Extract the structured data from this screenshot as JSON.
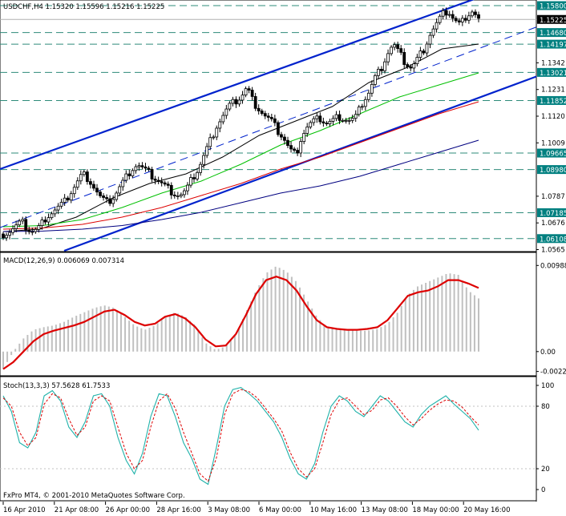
{
  "chart_data": [
    {
      "type": "candlestick",
      "title": "USDCHF,H4  1.15320 1.15596 1.15216 1.15225",
      "symbol": "USDCHF,H4",
      "ohlc_header": {
        "open": "1.15320",
        "high": "1.15596",
        "low": "1.15216",
        "close": "1.15225"
      },
      "ylim": [
        1.056,
        1.16
      ],
      "y_ticks": [
        "1.1342",
        "1.1231",
        "1.1120",
        "1.1009",
        "1.0787",
        "1.0676",
        "1.0565"
      ],
      "x_tick_labels": [
        "16 Apr 2010",
        "21 Apr 08:00",
        "26 Apr 00:00",
        "28 Apr 16:00",
        "3 May 08:00",
        "6 May 00:00",
        "10 May 16:00",
        "13 May 08:00",
        "18 May 00:00",
        "20 May 16:00"
      ],
      "horizontal_levels": [
        "1.15800",
        "1.14680",
        "1.14197",
        "1.13021",
        "1.11852",
        "1.09665",
        "1.08980",
        "1.07185",
        "1.06108"
      ],
      "current_price": "1.15225",
      "close_path": [
        1.063,
        1.064,
        1.066,
        1.068,
        1.065,
        1.064,
        1.066,
        1.07,
        1.072,
        1.074,
        1.076,
        1.08,
        1.084,
        1.088,
        1.086,
        1.082,
        1.078,
        1.076,
        1.078,
        1.082,
        1.086,
        1.09,
        1.092,
        1.09,
        1.088,
        1.086,
        1.084,
        1.082,
        1.08,
        1.079,
        1.081,
        1.086,
        1.09,
        1.096,
        1.102,
        1.108,
        1.112,
        1.116,
        1.118,
        1.12,
        1.124,
        1.118,
        1.115,
        1.112,
        1.11,
        1.106,
        1.103,
        1.098,
        1.096,
        1.104,
        1.108,
        1.11,
        1.111,
        1.109,
        1.11,
        1.112,
        1.111,
        1.11,
        1.112,
        1.118,
        1.122,
        1.128,
        1.132,
        1.138,
        1.142,
        1.138,
        1.134,
        1.132,
        1.136,
        1.14,
        1.146,
        1.15,
        1.154,
        1.156,
        1.152,
        1.15,
        1.154,
        1.156,
        1.1522
      ],
      "moving_averages": [
        {
          "color": "#000000",
          "values": [
            1.064,
            1.065,
            1.07,
            1.078,
            1.084,
            1.088,
            1.095,
            1.104,
            1.11,
            1.116,
            1.126,
            1.132,
            1.14,
            1.142
          ]
        },
        {
          "color": "#00c000",
          "values": [
            1.066,
            1.0665,
            1.069,
            1.074,
            1.08,
            1.085,
            1.092,
            1.1,
            1.106,
            1.113,
            1.12,
            1.125,
            1.13
          ]
        },
        {
          "color": "#dd0000",
          "values": [
            1.065,
            1.0655,
            1.067,
            1.07,
            1.074,
            1.079,
            1.084,
            1.09,
            1.095,
            1.101,
            1.107,
            1.113,
            1.118
          ]
        },
        {
          "color": "#000080",
          "values": [
            1.064,
            1.0642,
            1.065,
            1.0665,
            1.069,
            1.072,
            1.076,
            1.08,
            1.083,
            1.087,
            1.092,
            1.097,
            1.102
          ]
        }
      ]
    },
    {
      "type": "bar",
      "title": "MACD(12,26,9) 0.006069 0.007314",
      "indicator": "MACD(12,26,9)",
      "values_label": "0.006069 0.007314",
      "ylim": [
        -0.0025,
        0.01
      ],
      "y_ticks": [
        "0.00988",
        "0.00",
        "-0.00228"
      ],
      "histogram": [
        -0.002,
        0.0,
        0.0015,
        0.0025,
        0.0028,
        0.003,
        0.0034,
        0.004,
        0.0045,
        0.005,
        0.0053,
        0.005,
        0.004,
        0.003,
        0.0025,
        0.003,
        0.004,
        0.0045,
        0.004,
        0.003,
        0.001,
        0.0002,
        0.0006,
        0.002,
        0.0045,
        0.007,
        0.009,
        0.0098,
        0.0092,
        0.008,
        0.006,
        0.004,
        0.0028,
        0.0025,
        0.0025,
        0.0024,
        0.0024,
        0.0026,
        0.0032,
        0.0045,
        0.0065,
        0.0075,
        0.008,
        0.0085,
        0.009,
        0.0088,
        0.007,
        0.0061
      ],
      "signal": [
        -0.002,
        -0.0012,
        0.0,
        0.0012,
        0.002,
        0.0024,
        0.0027,
        0.003,
        0.0034,
        0.004,
        0.0046,
        0.0048,
        0.0042,
        0.0034,
        0.003,
        0.0032,
        0.004,
        0.0043,
        0.0038,
        0.0028,
        0.0014,
        0.0006,
        0.0007,
        0.002,
        0.0042,
        0.0066,
        0.0082,
        0.0086,
        0.0082,
        0.007,
        0.0052,
        0.0036,
        0.0028,
        0.0026,
        0.0025,
        0.0025,
        0.0026,
        0.0028,
        0.0036,
        0.005,
        0.0064,
        0.0068,
        0.007,
        0.0075,
        0.0082,
        0.0082,
        0.0078,
        0.0073
      ]
    },
    {
      "type": "line",
      "title": "Stoch(13,3,3) 57.5628 61.7533",
      "indicator": "Stoch(13,3,3)",
      "values_label": "57.5628 61.7533",
      "ylim": [
        0,
        100
      ],
      "y_ticks": [
        "100",
        "80",
        "20",
        "0"
      ],
      "main": [
        90,
        75,
        45,
        40,
        55,
        90,
        95,
        85,
        60,
        50,
        65,
        90,
        92,
        80,
        50,
        28,
        15,
        35,
        70,
        92,
        90,
        70,
        45,
        30,
        10,
        5,
        40,
        80,
        96,
        98,
        92,
        85,
        75,
        65,
        50,
        30,
        15,
        10,
        25,
        55,
        80,
        90,
        85,
        75,
        70,
        80,
        90,
        85,
        75,
        65,
        60,
        72,
        80,
        85,
        90,
        82,
        75,
        68,
        57
      ],
      "signal": [
        88,
        80,
        55,
        42,
        50,
        82,
        92,
        88,
        68,
        52,
        60,
        85,
        90,
        85,
        60,
        35,
        20,
        28,
        60,
        85,
        92,
        78,
        55,
        35,
        15,
        8,
        30,
        72,
        92,
        96,
        94,
        88,
        78,
        68,
        56,
        36,
        20,
        12,
        20,
        45,
        72,
        86,
        88,
        80,
        72,
        76,
        86,
        88,
        80,
        70,
        62,
        68,
        76,
        82,
        86,
        85,
        79,
        70,
        62
      ]
    }
  ],
  "footer": {
    "copyright": "FxPro MT4, © 2001-2010 MetaQuotes Software Corp."
  }
}
